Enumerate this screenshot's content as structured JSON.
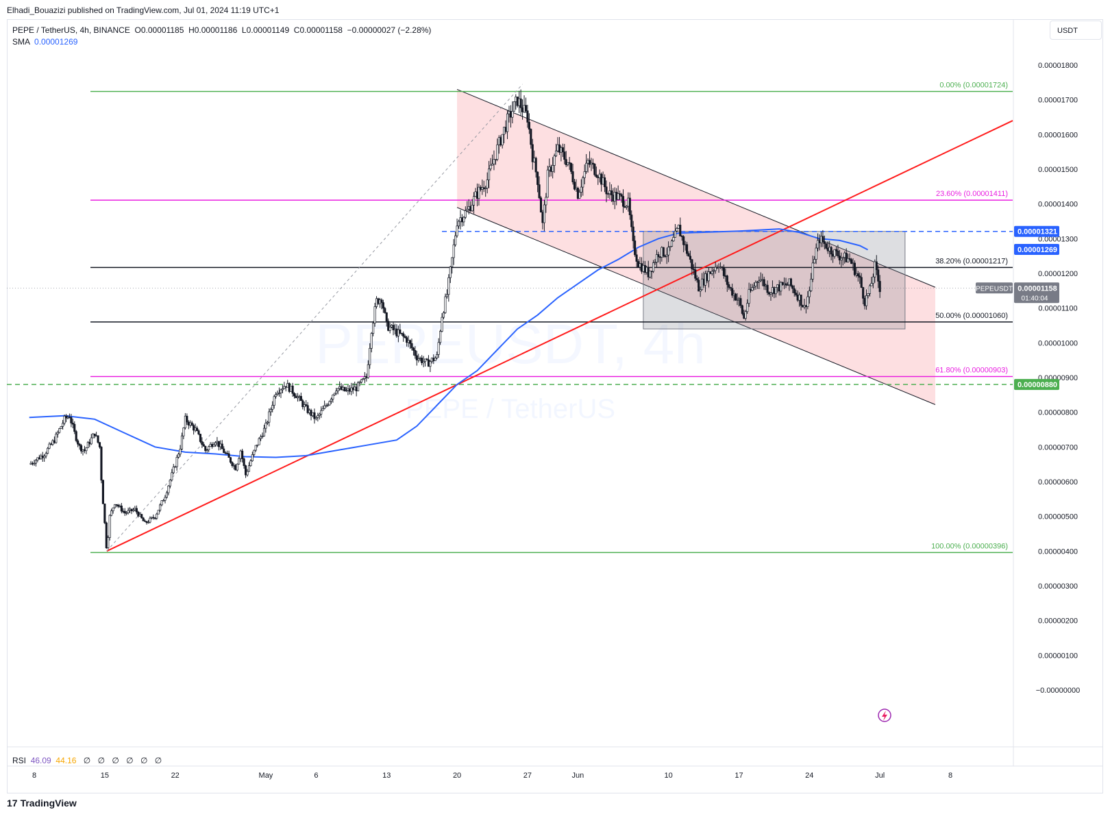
{
  "header": {
    "published": "Elhadi_Bouazizi published on TradingView.com, Jul 01, 2024 11:19 UTC+1"
  },
  "legend": {
    "symbol": "PEPE / TetherUS, 4h, BINANCE",
    "o_label": "O",
    "o_value": "0.00001185",
    "h_label": "H",
    "h_value": "0.00001186",
    "l_label": "L",
    "l_value": "0.00001149",
    "c_label": "C",
    "c_value": "0.00001158",
    "change": "−0.00000027 (−2.28%)",
    "sma_label": "SMA",
    "sma_value": "0.00001269"
  },
  "rsi": {
    "label": "RSI",
    "value1": "46.09",
    "value2": "44.16",
    "empty_glyphs": [
      "∅",
      "∅",
      "∅",
      "∅",
      "∅",
      "∅"
    ]
  },
  "currency": "USDT",
  "watermark": {
    "line1": "PEPEUSDT, 4h",
    "line2": "PEPE / TetherUS"
  },
  "footer": {
    "brand": "TradingView",
    "logo": "17"
  },
  "chart_data": {
    "type": "candlestick",
    "yticks": [
      "0.00001800",
      "0.00001700",
      "0.00001600",
      "0.00001500",
      "0.00001400",
      "0.00001300",
      "0.00001200",
      "0.00001100",
      "0.00001000",
      "0.00000900",
      "0.00000800",
      "0.00000700",
      "0.00000600",
      "0.00000500",
      "0.00000400",
      "0.00000300",
      "0.00000200",
      "0.00000100",
      "−0.00000000"
    ],
    "ytick_values": [
      1800,
      1700,
      1600,
      1500,
      1400,
      1300,
      1200,
      1100,
      1000,
      900,
      800,
      700,
      600,
      500,
      400,
      300,
      200,
      100,
      0
    ],
    "y_unit_note": "values below in units of 1e-8 USDT",
    "xticks": [
      {
        "label": "8",
        "x_day": -3
      },
      {
        "label": "15",
        "x_day": 4
      },
      {
        "label": "22",
        "x_day": 11
      },
      {
        "label": "May",
        "x_day": 20
      },
      {
        "label": "6",
        "x_day": 25
      },
      {
        "label": "13",
        "x_day": 32
      },
      {
        "label": "20",
        "x_day": 39
      },
      {
        "label": "27",
        "x_day": 46
      },
      {
        "label": "Jun",
        "x_day": 51
      },
      {
        "label": "10",
        "x_day": 60
      },
      {
        "label": "17",
        "x_day": 67
      },
      {
        "label": "24",
        "x_day": 74
      },
      {
        "label": "Jul",
        "x_day": 81
      },
      {
        "label": "8",
        "x_day": 88
      }
    ],
    "price_path": [
      [
        -3.5,
        650
      ],
      [
        -2,
        680
      ],
      [
        -1,
        720
      ],
      [
        0,
        780
      ],
      [
        0.5,
        790
      ],
      [
        1,
        740
      ],
      [
        1.5,
        700
      ],
      [
        2,
        690
      ],
      [
        3,
        740
      ],
      [
        3.5,
        700
      ],
      [
        3.7,
        590
      ],
      [
        4,
        480
      ],
      [
        4.2,
        400
      ],
      [
        4.5,
        500
      ],
      [
        5,
        540
      ],
      [
        6,
        510
      ],
      [
        7,
        520
      ],
      [
        8,
        480
      ],
      [
        9,
        500
      ],
      [
        10,
        560
      ],
      [
        11,
        650
      ],
      [
        11.5,
        700
      ],
      [
        12,
        780
      ],
      [
        13,
        750
      ],
      [
        14,
        690
      ],
      [
        15,
        720
      ],
      [
        16,
        680
      ],
      [
        17,
        640
      ],
      [
        17.5,
        690
      ],
      [
        18,
        620
      ],
      [
        19,
        700
      ],
      [
        20,
        760
      ],
      [
        21,
        860
      ],
      [
        22,
        880
      ],
      [
        23,
        850
      ],
      [
        24,
        810
      ],
      [
        25,
        780
      ],
      [
        26,
        820
      ],
      [
        27,
        870
      ],
      [
        28,
        860
      ],
      [
        29,
        870
      ],
      [
        30,
        900
      ],
      [
        30.5,
        1040
      ],
      [
        31,
        1120
      ],
      [
        31.5,
        1130
      ],
      [
        32,
        1050
      ],
      [
        33,
        1030
      ],
      [
        34,
        1010
      ],
      [
        35,
        960
      ],
      [
        36,
        940
      ],
      [
        37,
        960
      ],
      [
        37.5,
        1080
      ],
      [
        38,
        1140
      ],
      [
        38.5,
        1240
      ],
      [
        39,
        1350
      ],
      [
        40,
        1380
      ],
      [
        41,
        1430
      ],
      [
        42,
        1470
      ],
      [
        43,
        1560
      ],
      [
        44,
        1640
      ],
      [
        45,
        1700
      ],
      [
        46,
        1650
      ],
      [
        46.5,
        1540
      ],
      [
        47,
        1470
      ],
      [
        47.5,
        1340
      ],
      [
        48,
        1480
      ],
      [
        49,
        1560
      ],
      [
        50,
        1520
      ],
      [
        51,
        1430
      ],
      [
        52,
        1520
      ],
      [
        53,
        1490
      ],
      [
        54,
        1430
      ],
      [
        55,
        1420
      ],
      [
        56,
        1400
      ],
      [
        56.5,
        1280
      ],
      [
        57,
        1230
      ],
      [
        58,
        1200
      ],
      [
        59,
        1260
      ],
      [
        60,
        1260
      ],
      [
        61,
        1330
      ],
      [
        62,
        1250
      ],
      [
        63,
        1160
      ],
      [
        64,
        1200
      ],
      [
        65,
        1230
      ],
      [
        66,
        1160
      ],
      [
        67,
        1120
      ],
      [
        67.5,
        1070
      ],
      [
        68,
        1140
      ],
      [
        69,
        1190
      ],
      [
        70,
        1150
      ],
      [
        71,
        1160
      ],
      [
        72,
        1170
      ],
      [
        73,
        1130
      ],
      [
        73.5,
        1100
      ],
      [
        74,
        1150
      ],
      [
        74.5,
        1250
      ],
      [
        75,
        1300
      ],
      [
        76,
        1270
      ],
      [
        77,
        1250
      ],
      [
        78,
        1240
      ],
      [
        79,
        1180
      ],
      [
        79.5,
        1120
      ],
      [
        80,
        1150
      ],
      [
        80.5,
        1220
      ],
      [
        81,
        1158
      ]
    ],
    "sma_path": [
      [
        -3.5,
        785
      ],
      [
        0,
        790
      ],
      [
        3,
        780
      ],
      [
        6,
        740
      ],
      [
        9,
        700
      ],
      [
        12,
        685
      ],
      [
        15,
        680
      ],
      [
        18,
        672
      ],
      [
        21,
        670
      ],
      [
        24,
        675
      ],
      [
        27,
        690
      ],
      [
        30,
        705
      ],
      [
        33,
        720
      ],
      [
        35,
        760
      ],
      [
        37,
        820
      ],
      [
        39,
        880
      ],
      [
        41,
        920
      ],
      [
        43,
        980
      ],
      [
        45,
        1040
      ],
      [
        47,
        1080
      ],
      [
        49,
        1130
      ],
      [
        51,
        1170
      ],
      [
        53,
        1210
      ],
      [
        55,
        1240
      ],
      [
        57,
        1275
      ],
      [
        59,
        1300
      ],
      [
        61,
        1316
      ],
      [
        63,
        1318
      ],
      [
        65,
        1320
      ],
      [
        67,
        1322
      ],
      [
        69,
        1325
      ],
      [
        71,
        1328
      ],
      [
        73,
        1318
      ],
      [
        75,
        1300
      ],
      [
        77,
        1295
      ],
      [
        79,
        1280
      ],
      [
        79.8,
        1268
      ]
    ],
    "fib_levels": [
      {
        "label": "0.00% (0.00001724)",
        "value": 1724,
        "color": "#4caf50"
      },
      {
        "label": "23.60% (0.00001411)",
        "value": 1411,
        "color": "#e91ee0"
      },
      {
        "label": "38.20% (0.00001217)",
        "value": 1217,
        "color": "#131722"
      },
      {
        "label": "50.00% (0.00001060)",
        "value": 1060,
        "color": "#131722"
      },
      {
        "label": "61.80% (0.00000903)",
        "value": 903,
        "color": "#e91ee0"
      },
      {
        "label": "100.00% (0.00000396)",
        "value": 396,
        "color": "#4caf50"
      }
    ],
    "horizontal_dashed": [
      {
        "value": 1321,
        "color": "#2962ff",
        "label": "0.00001321"
      },
      {
        "value": 880,
        "color": "#4caf50",
        "label": "0.00000880"
      }
    ],
    "price_labels": {
      "sma": "0.00001269",
      "current_symbol": "PEPEUSDT",
      "current": "0.00001158",
      "countdown": "01:40:04"
    },
    "colors": {
      "up": "#ffffff",
      "down": "#131722",
      "sma": "#2962ff",
      "trendline": "#ff1a1a",
      "channel_fill": "rgba(242,54,69,0.16)",
      "range_box": "rgba(120,123,134,0.25)",
      "fib_green": "#4caf50",
      "fib_magenta": "#e91ee0"
    }
  }
}
